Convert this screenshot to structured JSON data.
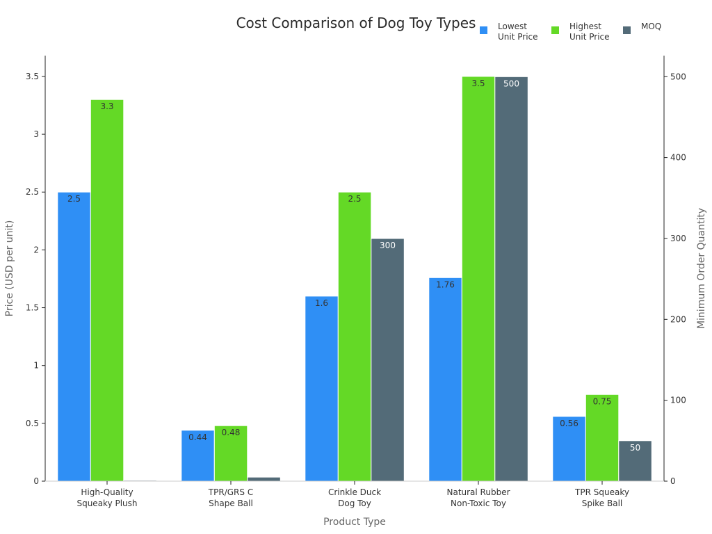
{
  "chart_data": {
    "type": "bar",
    "title": "Cost Comparison of Dog Toy Types",
    "xlabel": "Product Type",
    "ylabel": "Price (USD per unit)",
    "y2label": "Minimum Order Quantity",
    "categories": [
      [
        "High-Quality",
        "Squeaky Plush"
      ],
      [
        "TPR/GRS C",
        "Shape Ball"
      ],
      [
        "Crinkle Duck",
        "Dog Toy"
      ],
      [
        "Natural Rubber",
        "Non-Toxic Toy"
      ],
      [
        "TPR Squeaky",
        "Spike Ball"
      ]
    ],
    "ylim": [
      0,
      3.68
    ],
    "y2lim": [
      0,
      526
    ],
    "yticks": [
      "0",
      "0.5",
      "1",
      "1.5",
      "2",
      "2.5",
      "3",
      "3.5"
    ],
    "y2ticks": [
      "0",
      "100",
      "200",
      "300",
      "400",
      "500"
    ],
    "series": [
      {
        "name": [
          "Lowest",
          "Unit Price"
        ],
        "axis": "left",
        "color": "#2f8ff5",
        "values": [
          2.5,
          0.44,
          1.6,
          1.76,
          0.56
        ],
        "labels": [
          "2.5",
          "0.44",
          "1.6",
          "1.76",
          "0.56"
        ],
        "label_color": "dark"
      },
      {
        "name": [
          "Highest",
          "Unit Price"
        ],
        "axis": "left",
        "color": "#64d926",
        "values": [
          3.3,
          0.48,
          2.5,
          3.5,
          0.75
        ],
        "labels": [
          "3.3",
          "0.48",
          "2.5",
          "3.5",
          "0.75"
        ],
        "label_color": "dark"
      },
      {
        "name": [
          "MOQ"
        ],
        "axis": "right",
        "color": "#536b78",
        "values": [
          1,
          5,
          300,
          500,
          50
        ],
        "labels": [
          "",
          "",
          "300",
          "500",
          "50"
        ],
        "label_color": "light"
      }
    ],
    "grid": false,
    "legend_position": "top-right"
  }
}
